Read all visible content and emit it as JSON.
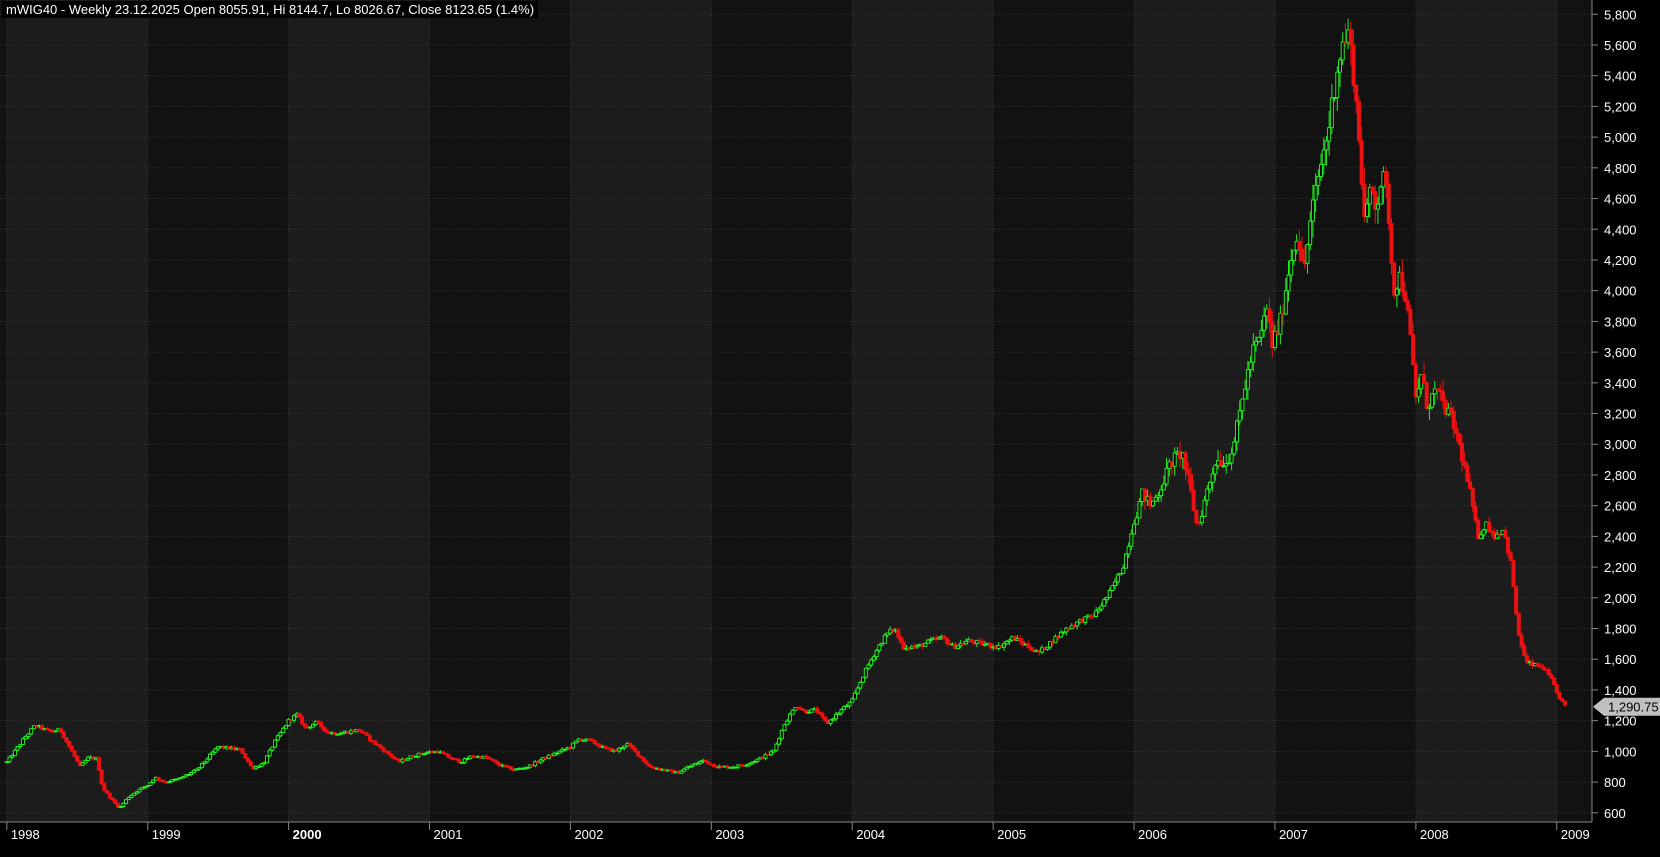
{
  "header": {
    "title": "mWIG40 - Weekly 23.12.2025 Open 8055.91, Hi 8144.7, Lo 8026.67, Close 8123.65 (1.4%)"
  },
  "chart_data": {
    "type": "candlestick",
    "ylim": [
      540,
      5880
    ],
    "x_range": [
      1998.0,
      2009.1
    ],
    "y_ticks": [
      {
        "value": 600,
        "label": "600"
      },
      {
        "value": 800,
        "label": "800"
      },
      {
        "value": 1000,
        "label": "1,000"
      },
      {
        "value": 1200,
        "label": "1,200"
      },
      {
        "value": 1400,
        "label": "1,400"
      },
      {
        "value": 1600,
        "label": "1,600"
      },
      {
        "value": 1800,
        "label": "1,800"
      },
      {
        "value": 2000,
        "label": "2,000"
      },
      {
        "value": 2200,
        "label": "2,200"
      },
      {
        "value": 2400,
        "label": "2,400"
      },
      {
        "value": 2600,
        "label": "2,600"
      },
      {
        "value": 2800,
        "label": "2,800"
      },
      {
        "value": 3000,
        "label": "3,000"
      },
      {
        "value": 3200,
        "label": "3,200"
      },
      {
        "value": 3400,
        "label": "3,400"
      },
      {
        "value": 3600,
        "label": "3,600"
      },
      {
        "value": 3800,
        "label": "3,800"
      },
      {
        "value": 4000,
        "label": "4,000"
      },
      {
        "value": 4200,
        "label": "4,200"
      },
      {
        "value": 4400,
        "label": "4,400"
      },
      {
        "value": 4600,
        "label": "4,600"
      },
      {
        "value": 4800,
        "label": "4,800"
      },
      {
        "value": 5000,
        "label": "5,000"
      },
      {
        "value": 5200,
        "label": "5,200"
      },
      {
        "value": 5400,
        "label": "5,400"
      },
      {
        "value": 5600,
        "label": "5,600"
      },
      {
        "value": 5800,
        "label": "5,800"
      }
    ],
    "x_ticks": [
      {
        "value": 1998,
        "label": "1998"
      },
      {
        "value": 1999,
        "label": "1999"
      },
      {
        "value": 2000,
        "label": "2000",
        "bold": true
      },
      {
        "value": 2001,
        "label": "2001"
      },
      {
        "value": 2002,
        "label": "2002"
      },
      {
        "value": 2003,
        "label": "2003"
      },
      {
        "value": 2004,
        "label": "2004"
      },
      {
        "value": 2005,
        "label": "2005"
      },
      {
        "value": 2006,
        "label": "2006"
      },
      {
        "value": 2007,
        "label": "2007"
      },
      {
        "value": 2008,
        "label": "2008"
      },
      {
        "value": 2009,
        "label": "2009"
      }
    ],
    "last_value": 1290.75,
    "last_value_label": "1,290.75",
    "colors": {
      "up": "#22ee22",
      "down": "#ee1111",
      "band_light": "#1c1c1c",
      "band_dark": "#121212",
      "grid": "#3a3a3a",
      "axis_text": "#ffffff",
      "marker": "#c0c0c0"
    },
    "series": [
      {
        "t": 1998.0,
        "close": 930
      },
      {
        "t": 1998.12,
        "close": 1080
      },
      {
        "t": 1998.2,
        "close": 1170
      },
      {
        "t": 1998.3,
        "close": 1130
      },
      {
        "t": 1998.38,
        "close": 1140
      },
      {
        "t": 1998.45,
        "close": 1020
      },
      {
        "t": 1998.52,
        "close": 900
      },
      {
        "t": 1998.58,
        "close": 960
      },
      {
        "t": 1998.64,
        "close": 950
      },
      {
        "t": 1998.68,
        "close": 760
      },
      {
        "t": 1998.75,
        "close": 680
      },
      {
        "t": 1998.8,
        "close": 630
      },
      {
        "t": 1998.86,
        "close": 700
      },
      {
        "t": 1998.92,
        "close": 740
      },
      {
        "t": 1999.0,
        "close": 780
      },
      {
        "t": 1999.05,
        "close": 830
      },
      {
        "t": 1999.12,
        "close": 800
      },
      {
        "t": 1999.22,
        "close": 820
      },
      {
        "t": 1999.35,
        "close": 880
      },
      {
        "t": 1999.42,
        "close": 950
      },
      {
        "t": 1999.5,
        "close": 1030
      },
      {
        "t": 1999.58,
        "close": 1020
      },
      {
        "t": 1999.66,
        "close": 1010
      },
      {
        "t": 1999.74,
        "close": 890
      },
      {
        "t": 1999.82,
        "close": 920
      },
      {
        "t": 1999.9,
        "close": 1060
      },
      {
        "t": 2000.0,
        "close": 1200
      },
      {
        "t": 2000.06,
        "close": 1240
      },
      {
        "t": 2000.12,
        "close": 1150
      },
      {
        "t": 2000.2,
        "close": 1190
      },
      {
        "t": 2000.28,
        "close": 1120
      },
      {
        "t": 2000.38,
        "close": 1120
      },
      {
        "t": 2000.5,
        "close": 1140
      },
      {
        "t": 2000.6,
        "close": 1060
      },
      {
        "t": 2000.7,
        "close": 990
      },
      {
        "t": 2000.78,
        "close": 930
      },
      {
        "t": 2000.88,
        "close": 970
      },
      {
        "t": 2000.96,
        "close": 990
      },
      {
        "t": 2001.06,
        "close": 1000
      },
      {
        "t": 2001.14,
        "close": 960
      },
      {
        "t": 2001.22,
        "close": 930
      },
      {
        "t": 2001.3,
        "close": 970
      },
      {
        "t": 2001.4,
        "close": 960
      },
      {
        "t": 2001.5,
        "close": 910
      },
      {
        "t": 2001.6,
        "close": 880
      },
      {
        "t": 2001.7,
        "close": 900
      },
      {
        "t": 2001.8,
        "close": 950
      },
      {
        "t": 2001.9,
        "close": 990
      },
      {
        "t": 2002.0,
        "close": 1030
      },
      {
        "t": 2002.06,
        "close": 1080
      },
      {
        "t": 2002.14,
        "close": 1070
      },
      {
        "t": 2002.24,
        "close": 1020
      },
      {
        "t": 2002.32,
        "close": 1000
      },
      {
        "t": 2002.4,
        "close": 1050
      },
      {
        "t": 2002.48,
        "close": 980
      },
      {
        "t": 2002.56,
        "close": 900
      },
      {
        "t": 2002.66,
        "close": 880
      },
      {
        "t": 2002.76,
        "close": 860
      },
      {
        "t": 2002.84,
        "close": 900
      },
      {
        "t": 2002.94,
        "close": 940
      },
      {
        "t": 2003.04,
        "close": 900
      },
      {
        "t": 2003.16,
        "close": 900
      },
      {
        "t": 2003.26,
        "close": 920
      },
      {
        "t": 2003.36,
        "close": 960
      },
      {
        "t": 2003.44,
        "close": 1000
      },
      {
        "t": 2003.52,
        "close": 1180
      },
      {
        "t": 2003.6,
        "close": 1300
      },
      {
        "t": 2003.66,
        "close": 1260
      },
      {
        "t": 2003.74,
        "close": 1270
      },
      {
        "t": 2003.82,
        "close": 1180
      },
      {
        "t": 2003.9,
        "close": 1250
      },
      {
        "t": 2004.0,
        "close": 1330
      },
      {
        "t": 2004.08,
        "close": 1500
      },
      {
        "t": 2004.16,
        "close": 1640
      },
      {
        "t": 2004.24,
        "close": 1760
      },
      {
        "t": 2004.3,
        "close": 1800
      },
      {
        "t": 2004.36,
        "close": 1680
      },
      {
        "t": 2004.46,
        "close": 1680
      },
      {
        "t": 2004.56,
        "close": 1720
      },
      {
        "t": 2004.64,
        "close": 1740
      },
      {
        "t": 2004.72,
        "close": 1680
      },
      {
        "t": 2004.82,
        "close": 1720
      },
      {
        "t": 2004.92,
        "close": 1700
      },
      {
        "t": 2005.04,
        "close": 1680
      },
      {
        "t": 2005.14,
        "close": 1740
      },
      {
        "t": 2005.22,
        "close": 1700
      },
      {
        "t": 2005.32,
        "close": 1640
      },
      {
        "t": 2005.42,
        "close": 1720
      },
      {
        "t": 2005.52,
        "close": 1800
      },
      {
        "t": 2005.62,
        "close": 1850
      },
      {
        "t": 2005.72,
        "close": 1890
      },
      {
        "t": 2005.82,
        "close": 2020
      },
      {
        "t": 2005.92,
        "close": 2200
      },
      {
        "t": 2006.0,
        "close": 2500
      },
      {
        "t": 2006.06,
        "close": 2680
      },
      {
        "t": 2006.12,
        "close": 2600
      },
      {
        "t": 2006.18,
        "close": 2700
      },
      {
        "t": 2006.26,
        "close": 2880
      },
      {
        "t": 2006.34,
        "close": 2950
      },
      {
        "t": 2006.4,
        "close": 2700
      },
      {
        "t": 2006.45,
        "close": 2450
      },
      {
        "t": 2006.52,
        "close": 2700
      },
      {
        "t": 2006.58,
        "close": 2900
      },
      {
        "t": 2006.66,
        "close": 2880
      },
      {
        "t": 2006.72,
        "close": 3050
      },
      {
        "t": 2006.78,
        "close": 3350
      },
      {
        "t": 2006.84,
        "close": 3600
      },
      {
        "t": 2006.9,
        "close": 3700
      },
      {
        "t": 2006.94,
        "close": 3900
      },
      {
        "t": 2006.98,
        "close": 3650
      },
      {
        "t": 2007.04,
        "close": 3800
      },
      {
        "t": 2007.1,
        "close": 4150
      },
      {
        "t": 2007.16,
        "close": 4400
      },
      {
        "t": 2007.2,
        "close": 4100
      },
      {
        "t": 2007.26,
        "close": 4500
      },
      {
        "t": 2007.32,
        "close": 4800
      },
      {
        "t": 2007.38,
        "close": 5050
      },
      {
        "t": 2007.44,
        "close": 5450
      },
      {
        "t": 2007.48,
        "close": 5600
      },
      {
        "t": 2007.52,
        "close": 5680
      },
      {
        "t": 2007.56,
        "close": 5400
      },
      {
        "t": 2007.6,
        "close": 4950
      },
      {
        "t": 2007.64,
        "close": 4400
      },
      {
        "t": 2007.68,
        "close": 4700
      },
      {
        "t": 2007.72,
        "close": 4550
      },
      {
        "t": 2007.76,
        "close": 4750
      },
      {
        "t": 2007.8,
        "close": 4600
      },
      {
        "t": 2007.84,
        "close": 4000
      },
      {
        "t": 2007.88,
        "close": 4100
      },
      {
        "t": 2007.92,
        "close": 4000
      },
      {
        "t": 2007.96,
        "close": 3700
      },
      {
        "t": 2008.0,
        "close": 3300
      },
      {
        "t": 2008.04,
        "close": 3450
      },
      {
        "t": 2008.08,
        "close": 3250
      },
      {
        "t": 2008.14,
        "close": 3350
      },
      {
        "t": 2008.2,
        "close": 3250
      },
      {
        "t": 2008.26,
        "close": 3150
      },
      {
        "t": 2008.32,
        "close": 2950
      },
      {
        "t": 2008.38,
        "close": 2700
      },
      {
        "t": 2008.44,
        "close": 2400
      },
      {
        "t": 2008.5,
        "close": 2480
      },
      {
        "t": 2008.56,
        "close": 2400
      },
      {
        "t": 2008.62,
        "close": 2450
      },
      {
        "t": 2008.68,
        "close": 2200
      },
      {
        "t": 2008.72,
        "close": 1800
      },
      {
        "t": 2008.78,
        "close": 1580
      },
      {
        "t": 2008.84,
        "close": 1560
      },
      {
        "t": 2008.9,
        "close": 1550
      },
      {
        "t": 2008.96,
        "close": 1470
      },
      {
        "t": 2009.0,
        "close": 1380
      },
      {
        "t": 2009.06,
        "close": 1290.75
      }
    ]
  }
}
